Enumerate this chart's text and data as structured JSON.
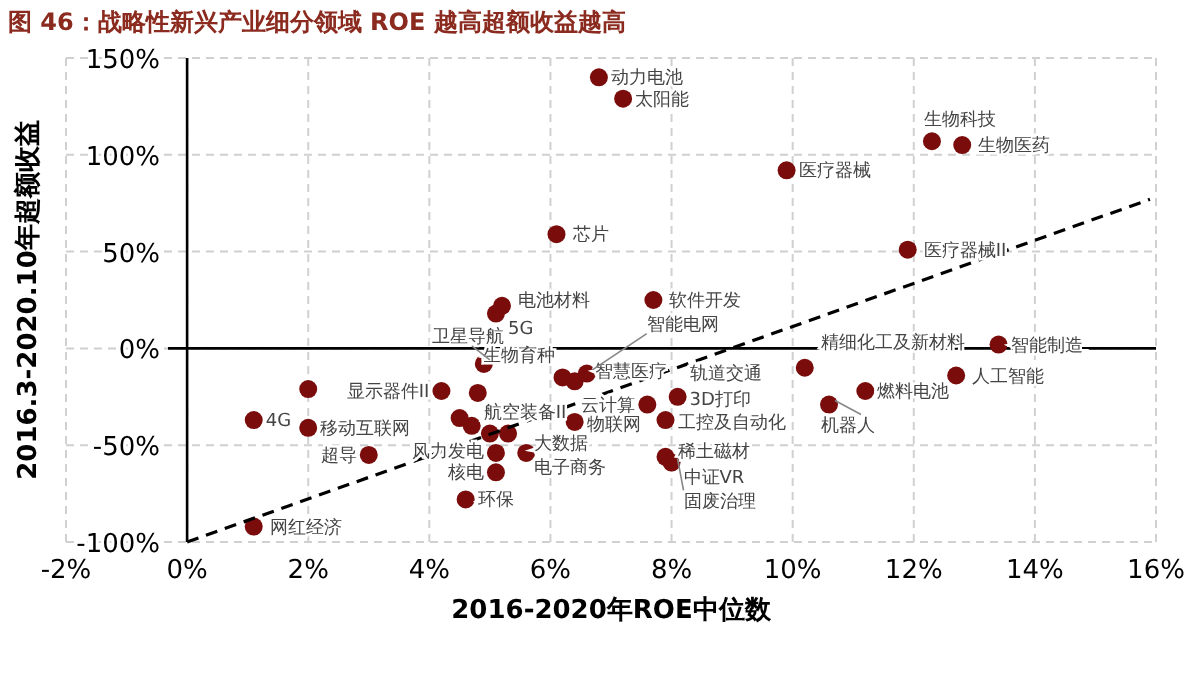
{
  "chart_data": {
    "type": "scatter",
    "title": "图 46：战略性新兴产业细分领域 ROE 越高超额收益越高",
    "xlabel": "2016-2020年ROE中位数",
    "ylabel": "2016.3-2020.10年超额收益",
    "xlim": [
      -2,
      16
    ],
    "ylim": [
      -100,
      150
    ],
    "xticks": [
      {
        "value": -2,
        "label": "-2%"
      },
      {
        "value": 0,
        "label": "0%"
      },
      {
        "value": 2,
        "label": "2%"
      },
      {
        "value": 4,
        "label": "4%"
      },
      {
        "value": 6,
        "label": "6%"
      },
      {
        "value": 8,
        "label": "8%"
      },
      {
        "value": 10,
        "label": "10%"
      },
      {
        "value": 12,
        "label": "12%"
      },
      {
        "value": 14,
        "label": "14%"
      },
      {
        "value": 16,
        "label": "16%"
      }
    ],
    "yticks": [
      {
        "value": -100,
        "label": "-100%"
      },
      {
        "value": -50,
        "label": "-50%"
      },
      {
        "value": 0,
        "label": "0%"
      },
      {
        "value": 50,
        "label": "50%"
      },
      {
        "value": 100,
        "label": "100%"
      },
      {
        "value": 150,
        "label": "150%"
      }
    ],
    "grid": true,
    "series": [
      {
        "marker": "circle",
        "color": "#7a0c0c",
        "x": [
          6.8,
          7.2,
          12.3,
          12.8,
          9.9,
          6.1,
          11.9,
          7.7,
          5.2,
          5.1,
          13.4,
          10.2,
          12.7,
          11.2,
          10.6,
          6.2,
          6.4,
          6.6,
          7.6,
          8.1,
          6.4,
          7.9,
          5.6,
          7.9,
          8.0,
          4.9,
          4.2,
          4.8,
          2.0,
          1.1,
          2.0,
          3.0,
          4.5,
          4.7,
          5.0,
          5.3,
          5.1,
          5.1,
          4.6,
          1.1
        ],
        "values": [
          140,
          129,
          107,
          105,
          92,
          59,
          51,
          25,
          22,
          18,
          2,
          -10,
          -14,
          -22,
          -29,
          -15,
          -17,
          -13,
          -29,
          -25,
          -38,
          -37,
          -54,
          -56,
          -59,
          -8,
          -22,
          -23,
          -21,
          -37,
          -41,
          -55,
          -36,
          -40,
          -44,
          -44,
          -54,
          -64,
          -78,
          -92
        ]
      },
      {
        "type": "line",
        "color": "#000000",
        "line_style": "dashed",
        "x": [
          0,
          15.9
        ],
        "values": [
          -100,
          77
        ]
      }
    ],
    "annotations": [
      {
        "text": "动力电池",
        "x": 6.8,
        "y": 140
      },
      {
        "text": "太阳能",
        "x": 7.2,
        "y": 129
      },
      {
        "text": "生物科技",
        "x": 12.3,
        "y": 107
      },
      {
        "text": "生物医药",
        "x": 12.8,
        "y": 105
      },
      {
        "text": "医疗器械",
        "x": 9.9,
        "y": 92
      },
      {
        "text": "芯片",
        "x": 6.1,
        "y": 59
      },
      {
        "text": "医疗器械II",
        "x": 11.9,
        "y": 51
      },
      {
        "text": "软件开发",
        "x": 7.7,
        "y": 25
      },
      {
        "text": "电池材料",
        "x": 5.2,
        "y": 22
      },
      {
        "text": "5G",
        "x": 5.1,
        "y": 18
      },
      {
        "text": "智能制造",
        "x": 13.4,
        "y": 2
      },
      {
        "text": "精细化工及新材料",
        "x": 10.2,
        "y": -10
      },
      {
        "text": "人工智能",
        "x": 12.7,
        "y": -14
      },
      {
        "text": "燃料电池",
        "x": 11.2,
        "y": -22
      },
      {
        "text": "机器人",
        "x": 10.6,
        "y": -29
      },
      {
        "text": "生物育种",
        "x": 6.2,
        "y": -15
      },
      {
        "text": "智慧医疗",
        "x": 6.4,
        "y": -17
      },
      {
        "text": "智能电网",
        "x": 6.6,
        "y": -13
      },
      {
        "text": "云计算",
        "x": 7.6,
        "y": -29
      },
      {
        "text": "3D打印",
        "x": 8.1,
        "y": -25
      },
      {
        "text": "轨道交通",
        "x": 8.1,
        "y": -25
      },
      {
        "text": "物联网",
        "x": 6.4,
        "y": -38
      },
      {
        "text": "工控及自动化",
        "x": 7.9,
        "y": -37
      },
      {
        "text": "大数据",
        "x": 5.6,
        "y": -54
      },
      {
        "text": "电子商务",
        "x": 5.6,
        "y": -54
      },
      {
        "text": "稀土磁材",
        "x": 7.9,
        "y": -56
      },
      {
        "text": "中证VR",
        "x": 8.0,
        "y": -59
      },
      {
        "text": "固废治理",
        "x": 8.0,
        "y": -59
      },
      {
        "text": "卫星导航",
        "x": 4.9,
        "y": -8
      },
      {
        "text": "显示器件II",
        "x": 4.2,
        "y": -22
      },
      {
        "text": "4G",
        "x": 1.1,
        "y": -37
      },
      {
        "text": "移动互联网",
        "x": 2.0,
        "y": -41
      },
      {
        "text": "超导",
        "x": 3.0,
        "y": -55
      },
      {
        "text": "航空装备II",
        "x": 4.7,
        "y": -40
      },
      {
        "text": "风力发电",
        "x": 5.1,
        "y": -54
      },
      {
        "text": "核电",
        "x": 5.1,
        "y": -64
      },
      {
        "text": "环保",
        "x": 4.6,
        "y": -78
      },
      {
        "text": "网红经济",
        "x": 1.1,
        "y": -92
      }
    ]
  }
}
